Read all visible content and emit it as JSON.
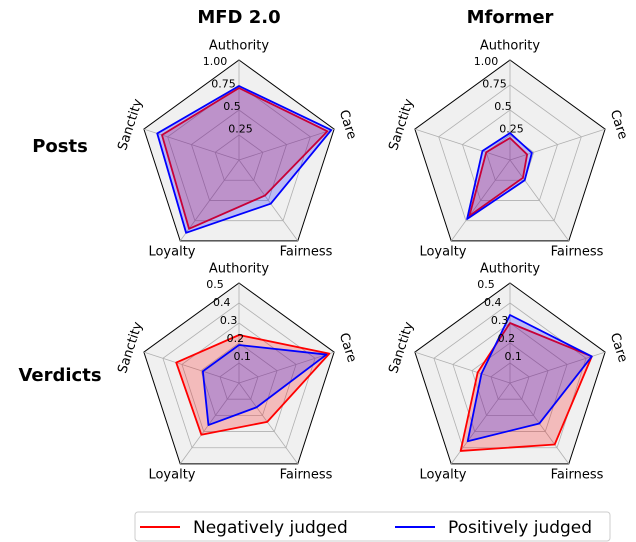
{
  "row_labels": [
    "Posts",
    "Verdicts"
  ],
  "chart_data": [
    {
      "type": "radar",
      "title": "MFD 2.0",
      "categories": [
        "Authority",
        "Care",
        "Fairness",
        "Loyalty",
        "Sanctity"
      ],
      "rlim": [
        0,
        1
      ],
      "rticks": [
        0.25,
        0.5,
        0.75,
        {
          "value": 1,
          "label": "1.00"
        }
      ],
      "series": [
        {
          "name": "Negatively judged",
          "color": "#ff0000",
          "values": [
            0.72,
            0.93,
            0.44,
            0.85,
            0.81
          ]
        },
        {
          "name": "Positively judged",
          "color": "#0000ff",
          "values": [
            0.74,
            0.97,
            0.54,
            0.9,
            0.86
          ]
        }
      ]
    },
    {
      "type": "radar",
      "title": "Mformer",
      "categories": [
        "Authority",
        "Care",
        "Fairness",
        "Loyalty",
        "Sanctity"
      ],
      "rlim": [
        0,
        1
      ],
      "rticks": [
        0.25,
        0.5,
        0.75,
        {
          "value": 1,
          "label": "1.00"
        }
      ],
      "series": [
        {
          "name": "Negatively judged",
          "color": "#ff0000",
          "values": [
            0.22,
            0.18,
            0.22,
            0.69,
            0.25
          ]
        },
        {
          "name": "Positively judged",
          "color": "#0000ff",
          "values": [
            0.27,
            0.23,
            0.25,
            0.73,
            0.29
          ]
        }
      ]
    },
    {
      "type": "radar",
      "categories": [
        "Authority",
        "Care",
        "Fairness",
        "Loyalty",
        "Sanctity"
      ],
      "rlim": [
        0,
        0.5
      ],
      "rticks": [
        0.1,
        0.2,
        0.3,
        0.4,
        0.5
      ],
      "series": [
        {
          "name": "Negatively judged",
          "color": "#ff0000",
          "values": [
            0.24,
            0.475,
            0.24,
            0.32,
            0.33
          ]
        },
        {
          "name": "Positively judged",
          "color": "#0000ff",
          "values": [
            0.19,
            0.46,
            0.15,
            0.26,
            0.19
          ]
        }
      ]
    },
    {
      "type": "radar",
      "categories": [
        "Authority",
        "Care",
        "Fairness",
        "Loyalty",
        "Sanctity"
      ],
      "rlim": [
        0,
        0.5
      ],
      "rticks": [
        0.1,
        0.2,
        0.3,
        0.4,
        0.5
      ],
      "series": [
        {
          "name": "Negatively judged",
          "color": "#ff0000",
          "values": [
            0.3,
            0.43,
            0.38,
            0.42,
            0.17
          ]
        },
        {
          "name": "Positively judged",
          "color": "#0000ff",
          "values": [
            0.34,
            0.43,
            0.25,
            0.36,
            0.15
          ]
        }
      ]
    }
  ]
}
